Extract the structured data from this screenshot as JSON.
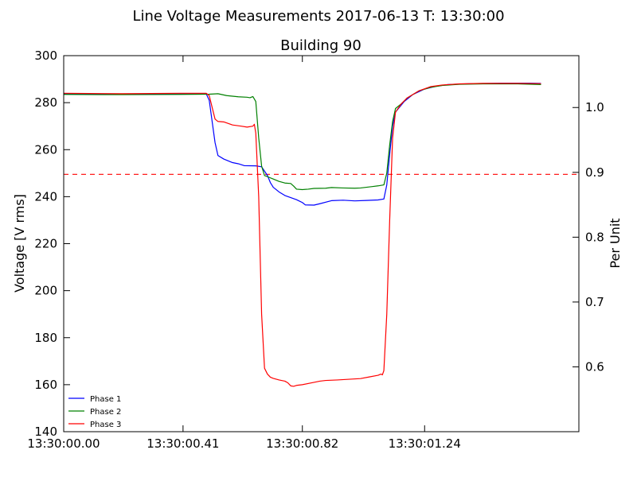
{
  "chart_data": {
    "type": "line",
    "title": "Line Voltage Measurements 2017-06-13 T: 13:30:00",
    "subtitle": "Building 90",
    "ylabel": "Voltage [V rms]",
    "y2label": "Per Unit",
    "xlim": [
      0.0,
      1.77
    ],
    "ylim": [
      140,
      300
    ],
    "y2lim": [
      0.5,
      1.08
    ],
    "xticks": [
      {
        "v": 0.0,
        "label": "13:30:00.00"
      },
      {
        "v": 0.41,
        "label": "13:30:00.41"
      },
      {
        "v": 0.82,
        "label": "13:30:00.82"
      },
      {
        "v": 1.24,
        "label": "13:30:01.24"
      }
    ],
    "yticks": [
      140,
      160,
      180,
      200,
      220,
      240,
      260,
      280,
      300
    ],
    "y2ticks": [
      "0.6",
      "0.7",
      "0.8",
      "0.9",
      "1.0"
    ],
    "reference_line": {
      "value": 249.5,
      "color": "#ff0000",
      "style": "dashed"
    },
    "legend_position": "lower-left",
    "grid": false,
    "series": [
      {
        "name": "Phase 1",
        "color": "#0000ff",
        "points": [
          [
            0.0,
            283.8
          ],
          [
            0.2,
            283.6
          ],
          [
            0.4,
            283.7
          ],
          [
            0.49,
            283.7
          ],
          [
            0.5,
            281
          ],
          [
            0.51,
            272
          ],
          [
            0.52,
            263
          ],
          [
            0.53,
            257.5
          ],
          [
            0.55,
            256
          ],
          [
            0.58,
            254.5
          ],
          [
            0.6,
            254
          ],
          [
            0.62,
            253.2
          ],
          [
            0.66,
            253.1
          ],
          [
            0.68,
            252.7
          ],
          [
            0.7,
            249
          ],
          [
            0.71,
            246
          ],
          [
            0.72,
            244
          ],
          [
            0.74,
            242
          ],
          [
            0.76,
            240.5
          ],
          [
            0.8,
            238.7
          ],
          [
            0.82,
            237.5
          ],
          [
            0.83,
            236.5
          ],
          [
            0.86,
            236.4
          ],
          [
            0.88,
            237
          ],
          [
            0.92,
            238.3
          ],
          [
            0.96,
            238.5
          ],
          [
            1.0,
            238.2
          ],
          [
            1.04,
            238.4
          ],
          [
            1.08,
            238.6
          ],
          [
            1.1,
            239
          ],
          [
            1.11,
            245
          ],
          [
            1.12,
            258
          ],
          [
            1.13,
            270
          ],
          [
            1.14,
            276
          ],
          [
            1.17,
            280.5
          ],
          [
            1.2,
            283.5
          ],
          [
            1.24,
            285.8
          ],
          [
            1.28,
            287
          ],
          [
            1.32,
            287.7
          ],
          [
            1.4,
            288.1
          ],
          [
            1.5,
            288.3
          ],
          [
            1.6,
            288.3
          ],
          [
            1.64,
            288.2
          ]
        ]
      },
      {
        "name": "Phase 2",
        "color": "#008000",
        "points": [
          [
            0.0,
            283.5
          ],
          [
            0.2,
            283.4
          ],
          [
            0.4,
            283.5
          ],
          [
            0.5,
            283.6
          ],
          [
            0.53,
            283.8
          ],
          [
            0.56,
            283
          ],
          [
            0.6,
            282.5
          ],
          [
            0.63,
            282.3
          ],
          [
            0.64,
            282.1
          ],
          [
            0.65,
            282.6
          ],
          [
            0.66,
            280.5
          ],
          [
            0.67,
            265
          ],
          [
            0.68,
            253
          ],
          [
            0.69,
            249
          ],
          [
            0.7,
            248.5
          ],
          [
            0.72,
            247.5
          ],
          [
            0.74,
            246.5
          ],
          [
            0.76,
            245.8
          ],
          [
            0.78,
            245.6
          ],
          [
            0.79,
            244.5
          ],
          [
            0.8,
            243.2
          ],
          [
            0.82,
            243
          ],
          [
            0.84,
            243.2
          ],
          [
            0.86,
            243.5
          ],
          [
            0.9,
            243.6
          ],
          [
            0.92,
            243.9
          ],
          [
            0.96,
            243.7
          ],
          [
            1.0,
            243.6
          ],
          [
            1.02,
            243.7
          ],
          [
            1.04,
            244
          ],
          [
            1.06,
            244.3
          ],
          [
            1.08,
            244.6
          ],
          [
            1.1,
            245
          ],
          [
            1.11,
            250
          ],
          [
            1.12,
            262
          ],
          [
            1.13,
            272
          ],
          [
            1.14,
            277.5
          ],
          [
            1.16,
            279.5
          ],
          [
            1.18,
            282
          ],
          [
            1.22,
            285
          ],
          [
            1.26,
            286.5
          ],
          [
            1.3,
            287.3
          ],
          [
            1.36,
            287.8
          ],
          [
            1.44,
            288
          ],
          [
            1.56,
            288
          ],
          [
            1.64,
            287.7
          ]
        ]
      },
      {
        "name": "Phase 3",
        "color": "#ff0000",
        "points": [
          [
            0.0,
            284
          ],
          [
            0.2,
            283.8
          ],
          [
            0.4,
            284
          ],
          [
            0.49,
            284
          ],
          [
            0.5,
            283
          ],
          [
            0.51,
            278
          ],
          [
            0.52,
            273
          ],
          [
            0.53,
            272
          ],
          [
            0.55,
            271.8
          ],
          [
            0.58,
            270.5
          ],
          [
            0.61,
            270
          ],
          [
            0.63,
            269.6
          ],
          [
            0.65,
            270
          ],
          [
            0.655,
            270.8
          ],
          [
            0.66,
            267
          ],
          [
            0.67,
            240
          ],
          [
            0.68,
            190
          ],
          [
            0.69,
            167
          ],
          [
            0.7,
            164.5
          ],
          [
            0.71,
            163.2
          ],
          [
            0.72,
            162.7
          ],
          [
            0.74,
            162
          ],
          [
            0.76,
            161.5
          ],
          [
            0.77,
            160.8
          ],
          [
            0.78,
            159.5
          ],
          [
            0.79,
            159.3
          ],
          [
            0.8,
            159.7
          ],
          [
            0.82,
            160
          ],
          [
            0.86,
            161
          ],
          [
            0.88,
            161.5
          ],
          [
            0.9,
            161.8
          ],
          [
            0.94,
            162
          ],
          [
            0.98,
            162.3
          ],
          [
            1.02,
            162.6
          ],
          [
            1.05,
            163.3
          ],
          [
            1.08,
            164
          ],
          [
            1.09,
            164.5
          ],
          [
            1.095,
            164.2
          ],
          [
            1.1,
            166
          ],
          [
            1.11,
            190
          ],
          [
            1.12,
            230
          ],
          [
            1.13,
            265
          ],
          [
            1.14,
            276
          ],
          [
            1.16,
            279.5
          ],
          [
            1.18,
            282
          ],
          [
            1.22,
            285
          ],
          [
            1.26,
            286.8
          ],
          [
            1.3,
            287.5
          ],
          [
            1.36,
            288
          ],
          [
            1.44,
            288.2
          ],
          [
            1.56,
            288.2
          ],
          [
            1.64,
            288.1
          ]
        ]
      }
    ]
  }
}
